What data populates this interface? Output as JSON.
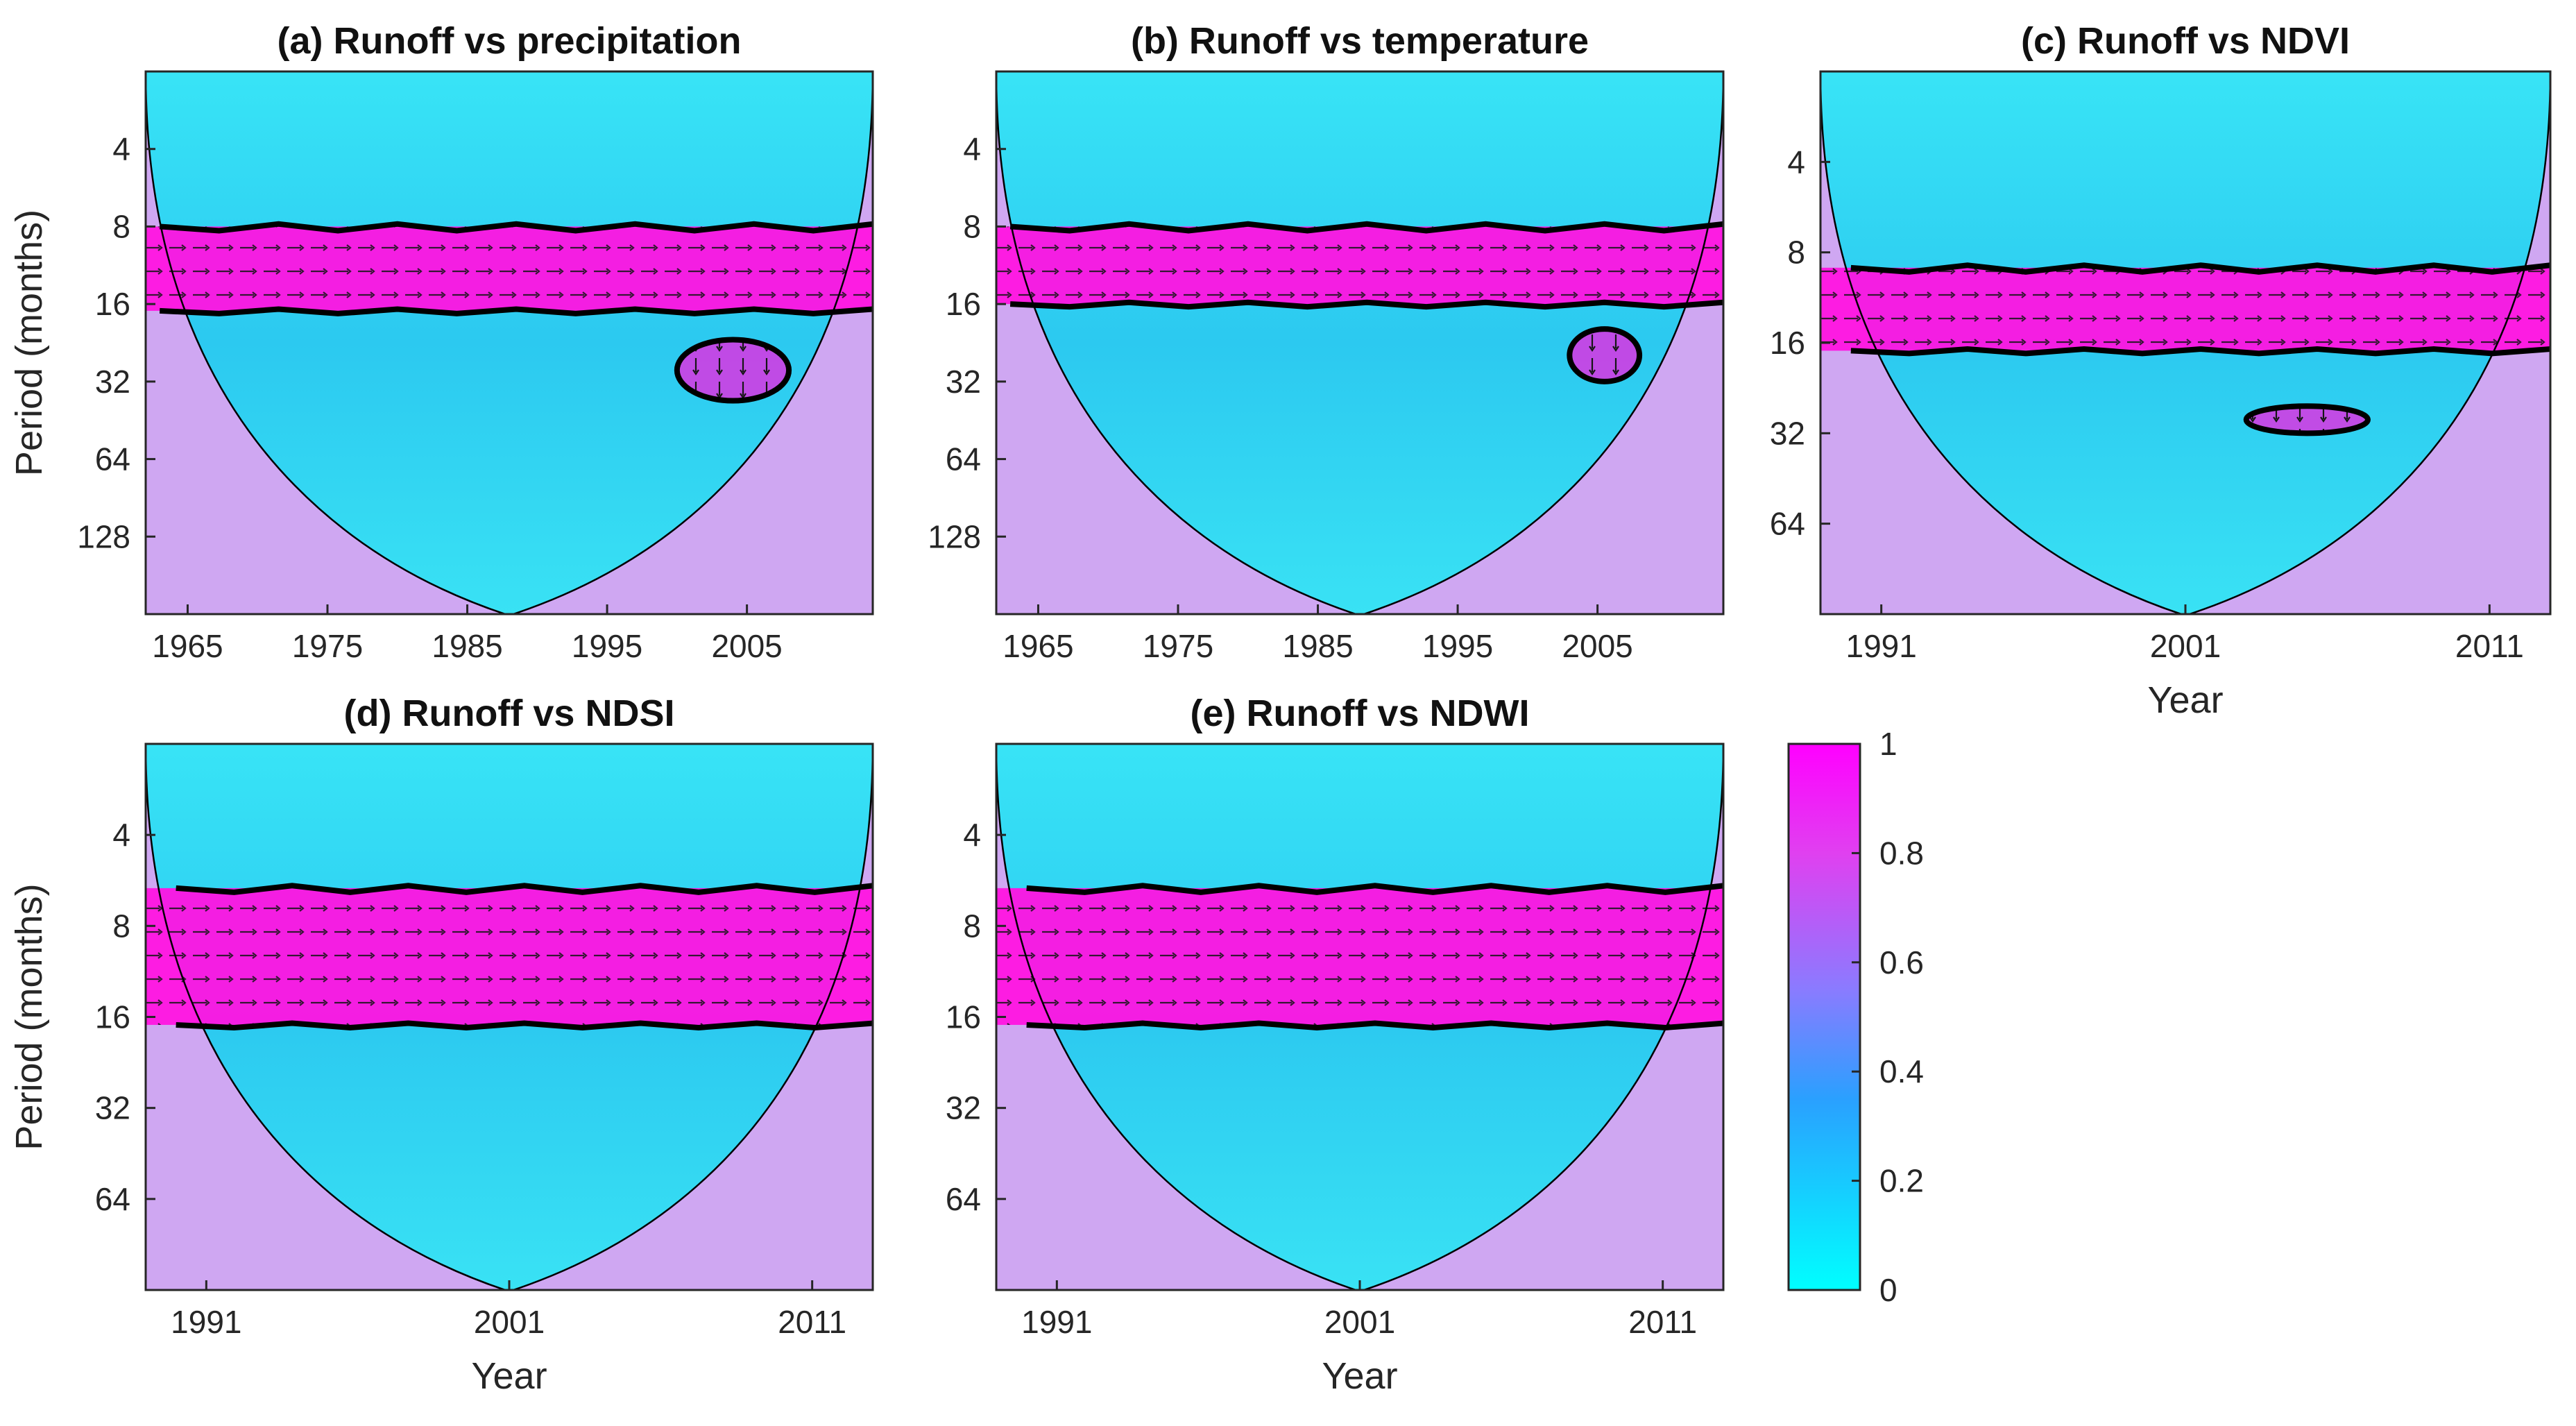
{
  "chart_data": [
    {
      "type": "heatmap",
      "panel": "a",
      "title": "(a) Runoff vs precipitation",
      "xlabel": "",
      "ylabel": "Period (months)",
      "xlim": [
        1962,
        2014
      ],
      "x_ticks": [
        1965,
        1975,
        1985,
        1995,
        2005
      ],
      "x_tick_labels": [
        "1965",
        "1975",
        "1985",
        "1995",
        "2005"
      ],
      "ylim_log2": [
        1,
        8
      ],
      "y_ticks": [
        4,
        8,
        16,
        32,
        64,
        128
      ],
      "y_tick_labels": [
        "4",
        "8",
        "16",
        "32",
        "64",
        "128"
      ],
      "coherence_bands": [
        {
          "period_from": 8,
          "period_to": 17,
          "coherence": 0.97
        }
      ],
      "significant_regions": [
        {
          "x_from": 1963,
          "x_to": 2014,
          "period_from": 8,
          "period_to": 17
        },
        {
          "x_from": 2000,
          "x_to": 2008,
          "period_from": 22,
          "period_to": 38
        }
      ]
    },
    {
      "type": "heatmap",
      "panel": "b",
      "title": "(b) Runoff vs temperature",
      "xlabel": "",
      "ylabel": "",
      "xlim": [
        1962,
        2014
      ],
      "x_ticks": [
        1965,
        1975,
        1985,
        1995,
        2005
      ],
      "x_tick_labels": [
        "1965",
        "1975",
        "1985",
        "1995",
        "2005"
      ],
      "ylim_log2": [
        1,
        8
      ],
      "y_ticks": [
        4,
        8,
        16,
        32,
        64,
        128
      ],
      "y_tick_labels": [
        "4",
        "8",
        "16",
        "32",
        "64",
        "128"
      ],
      "coherence_bands": [
        {
          "period_from": 8,
          "period_to": 16,
          "coherence": 1.0
        }
      ],
      "significant_regions": [
        {
          "x_from": 1963,
          "x_to": 2014,
          "period_from": 8,
          "period_to": 16
        },
        {
          "x_from": 2003,
          "x_to": 2008,
          "period_from": 20,
          "period_to": 32
        }
      ]
    },
    {
      "type": "heatmap",
      "panel": "c",
      "title": "(c) Runoff vs NDVI",
      "xlabel": "Year",
      "ylabel": "",
      "xlim": [
        1989,
        2013
      ],
      "x_ticks": [
        1991,
        2001,
        2011
      ],
      "x_tick_labels": [
        "1991",
        "2001",
        "2011"
      ],
      "ylim_log2": [
        1,
        7
      ],
      "y_ticks": [
        4,
        8,
        16,
        32,
        64
      ],
      "y_tick_labels": [
        "4",
        "8",
        "16",
        "32",
        "64"
      ],
      "coherence_bands": [
        {
          "period_from": 9,
          "period_to": 17,
          "coherence": 0.97
        }
      ],
      "significant_regions": [
        {
          "x_from": 1990,
          "x_to": 2013,
          "period_from": 9,
          "period_to": 17
        },
        {
          "x_from": 2003,
          "x_to": 2007,
          "period_from": 26,
          "period_to": 32
        }
      ]
    },
    {
      "type": "heatmap",
      "panel": "d",
      "title": "(d) Runoff vs NDSI",
      "xlabel": "Year",
      "ylabel": "Period (months)",
      "xlim": [
        1989,
        2013
      ],
      "x_ticks": [
        1991,
        2001,
        2011
      ],
      "x_tick_labels": [
        "1991",
        "2001",
        "2011"
      ],
      "ylim_log2": [
        1,
        7
      ],
      "y_ticks": [
        4,
        8,
        16,
        32,
        64
      ],
      "y_tick_labels": [
        "4",
        "8",
        "16",
        "32",
        "64"
      ],
      "coherence_bands": [
        {
          "period_from": 6,
          "period_to": 17,
          "coherence": 0.97
        }
      ],
      "significant_regions": [
        {
          "x_from": 1990,
          "x_to": 2013,
          "period_from": 6,
          "period_to": 17
        }
      ]
    },
    {
      "type": "heatmap",
      "panel": "e",
      "title": "(e) Runoff vs NDWI",
      "xlabel": "Year",
      "ylabel": "",
      "xlim": [
        1989,
        2013
      ],
      "x_ticks": [
        1991,
        2001,
        2011
      ],
      "x_tick_labels": [
        "1991",
        "2001",
        "2011"
      ],
      "ylim_log2": [
        1,
        7
      ],
      "y_ticks": [
        4,
        8,
        16,
        32,
        64
      ],
      "y_tick_labels": [
        "4",
        "8",
        "16",
        "32",
        "64"
      ],
      "coherence_bands": [
        {
          "period_from": 6,
          "period_to": 17,
          "coherence": 0.97
        }
      ],
      "significant_regions": [
        {
          "x_from": 1990,
          "x_to": 2013,
          "period_from": 6,
          "period_to": 17
        }
      ]
    }
  ],
  "colorbar": {
    "ticks": [
      0,
      0.2,
      0.4,
      0.6,
      0.8,
      1
    ],
    "tick_labels": [
      "0",
      "0.2",
      "0.4",
      "0.6",
      "0.8",
      "1"
    ],
    "low_color": "#00ffff",
    "mid_color": "#8a7bff",
    "high_color": "#ff00ff"
  },
  "colors": {
    "background_coherence": "#33d9f0",
    "band_coherence": "#ff14e0",
    "outside_cone": "#cfa7f2",
    "arrow": "#111111",
    "significance_contour": "#000000",
    "cone_line": "#000000"
  }
}
